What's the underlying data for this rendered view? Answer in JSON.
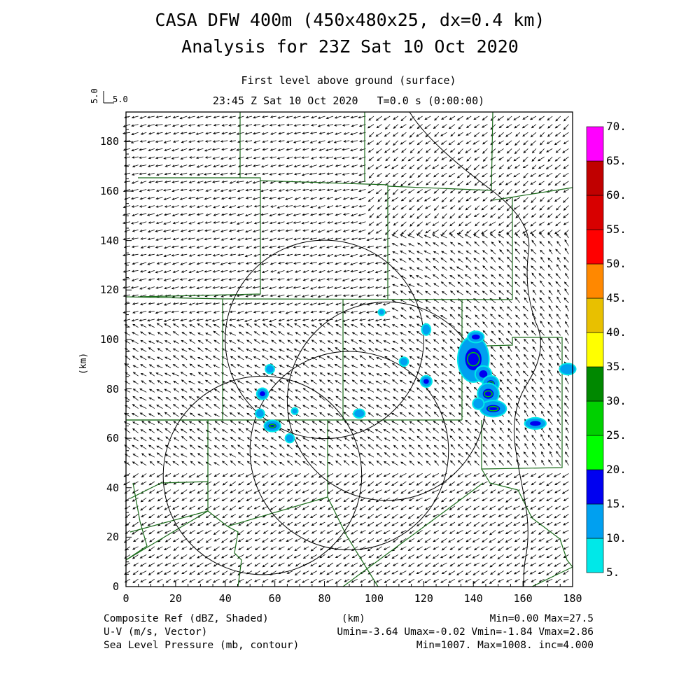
{
  "title": {
    "line1": "CASA DFW 400m (450x480x25, dx=0.4 km)",
    "line2": "Analysis for 23Z Sat 10 Oct 2020"
  },
  "subtitle": {
    "line1": "First level above ground (surface)",
    "line2": "23:45 Z Sat 10 Oct 2020   T=0.0 s (0:00:00)"
  },
  "reference_vector": {
    "label": "5.0",
    "label_vertical": "5.0"
  },
  "axes": {
    "x_label": "(km)",
    "y_label": "(km)",
    "x_ticks": [
      "0",
      "20",
      "40",
      "60",
      "80",
      "100",
      "120",
      "140",
      "160",
      "180"
    ],
    "y_ticks": [
      "0",
      "20",
      "40",
      "60",
      "80",
      "100",
      "120",
      "140",
      "160",
      "180"
    ],
    "x_range": [
      0,
      180
    ],
    "y_range": [
      0,
      192
    ]
  },
  "colorbar": {
    "labels": [
      "5.",
      "10.",
      "15.",
      "20.",
      "25.",
      "30.",
      "35.",
      "40.",
      "45.",
      "50.",
      "55.",
      "60.",
      "65.",
      "70."
    ],
    "colors": [
      "#00e8e8",
      "#00a0f0",
      "#0000f0",
      "#00ff00",
      "#00d000",
      "#008800",
      "#ffff00",
      "#e8c000",
      "#ff8800",
      "#ff0000",
      "#d80000",
      "#c00000",
      "#ff00ff"
    ]
  },
  "footer": {
    "left1": "Composite Ref (dBZ, Shaded)",
    "left2": "U-V (m/s, Vector)",
    "left3": "Sea Level Pressure (mb, contour)",
    "right1": "Min=0.00 Max=27.5",
    "right2": "Umin=-3.64 Umax=-0.02 Vmin=-1.84 Vmax=2.86",
    "right3": "Min=1007. Max=1008. inc=4.000"
  },
  "colors": {
    "county_lines": "#1a6b1a",
    "frame": "#000000"
  },
  "radar_rings": [
    {
      "center_km": [
        80,
        100
      ],
      "radius_km": 40
    },
    {
      "center_km": [
        90,
        55
      ],
      "radius_km": 40
    },
    {
      "center_km": [
        105,
        75
      ],
      "radius_km": 40
    },
    {
      "center_km": [
        55,
        45
      ],
      "radius_km": 40
    }
  ]
}
